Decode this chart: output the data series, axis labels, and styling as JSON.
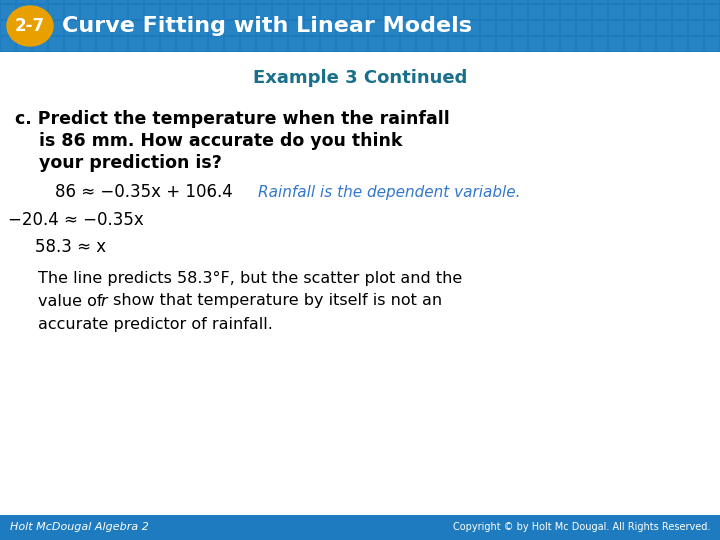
{
  "header_bg_color": "#1e7bbf",
  "header_text": "Curve Fitting with Linear Models",
  "header_badge_bg": "#e8a000",
  "header_badge_text": "2-7",
  "header_tile_color": "#3a9ad4",
  "subtitle": "Example 3 Continued",
  "subtitle_color": "#1a6f8a",
  "q_line1": "c. Predict the temperature when the rainfall",
  "q_line2": "    is 86 mm. How accurate do you think",
  "q_line3": "    your prediction is?",
  "line1_black": "86 ≈ −0.35x + 106.4",
  "line1_blue": "Rainfall is the dependent variable.",
  "line2": "−20.4 ≈ −0.35x",
  "line3": "58.3 ≈ x",
  "concl1": "The line predicts 58.3°F, but the scatter plot and the",
  "concl2_pre": "value of ",
  "concl2_r": "r",
  "concl2_post": " show that temperature by itself is not an",
  "concl3": "accurate predictor of rainfall.",
  "footer_left": "Holt McDougal Algebra 2",
  "footer_right": "Copyright © by Holt Mc Dougal. All Rights Reserved.",
  "footer_bg": "#1e7bbf",
  "bg_color": "#ffffff",
  "body_color": "#000000",
  "blue_italic_color": "#3377cc"
}
